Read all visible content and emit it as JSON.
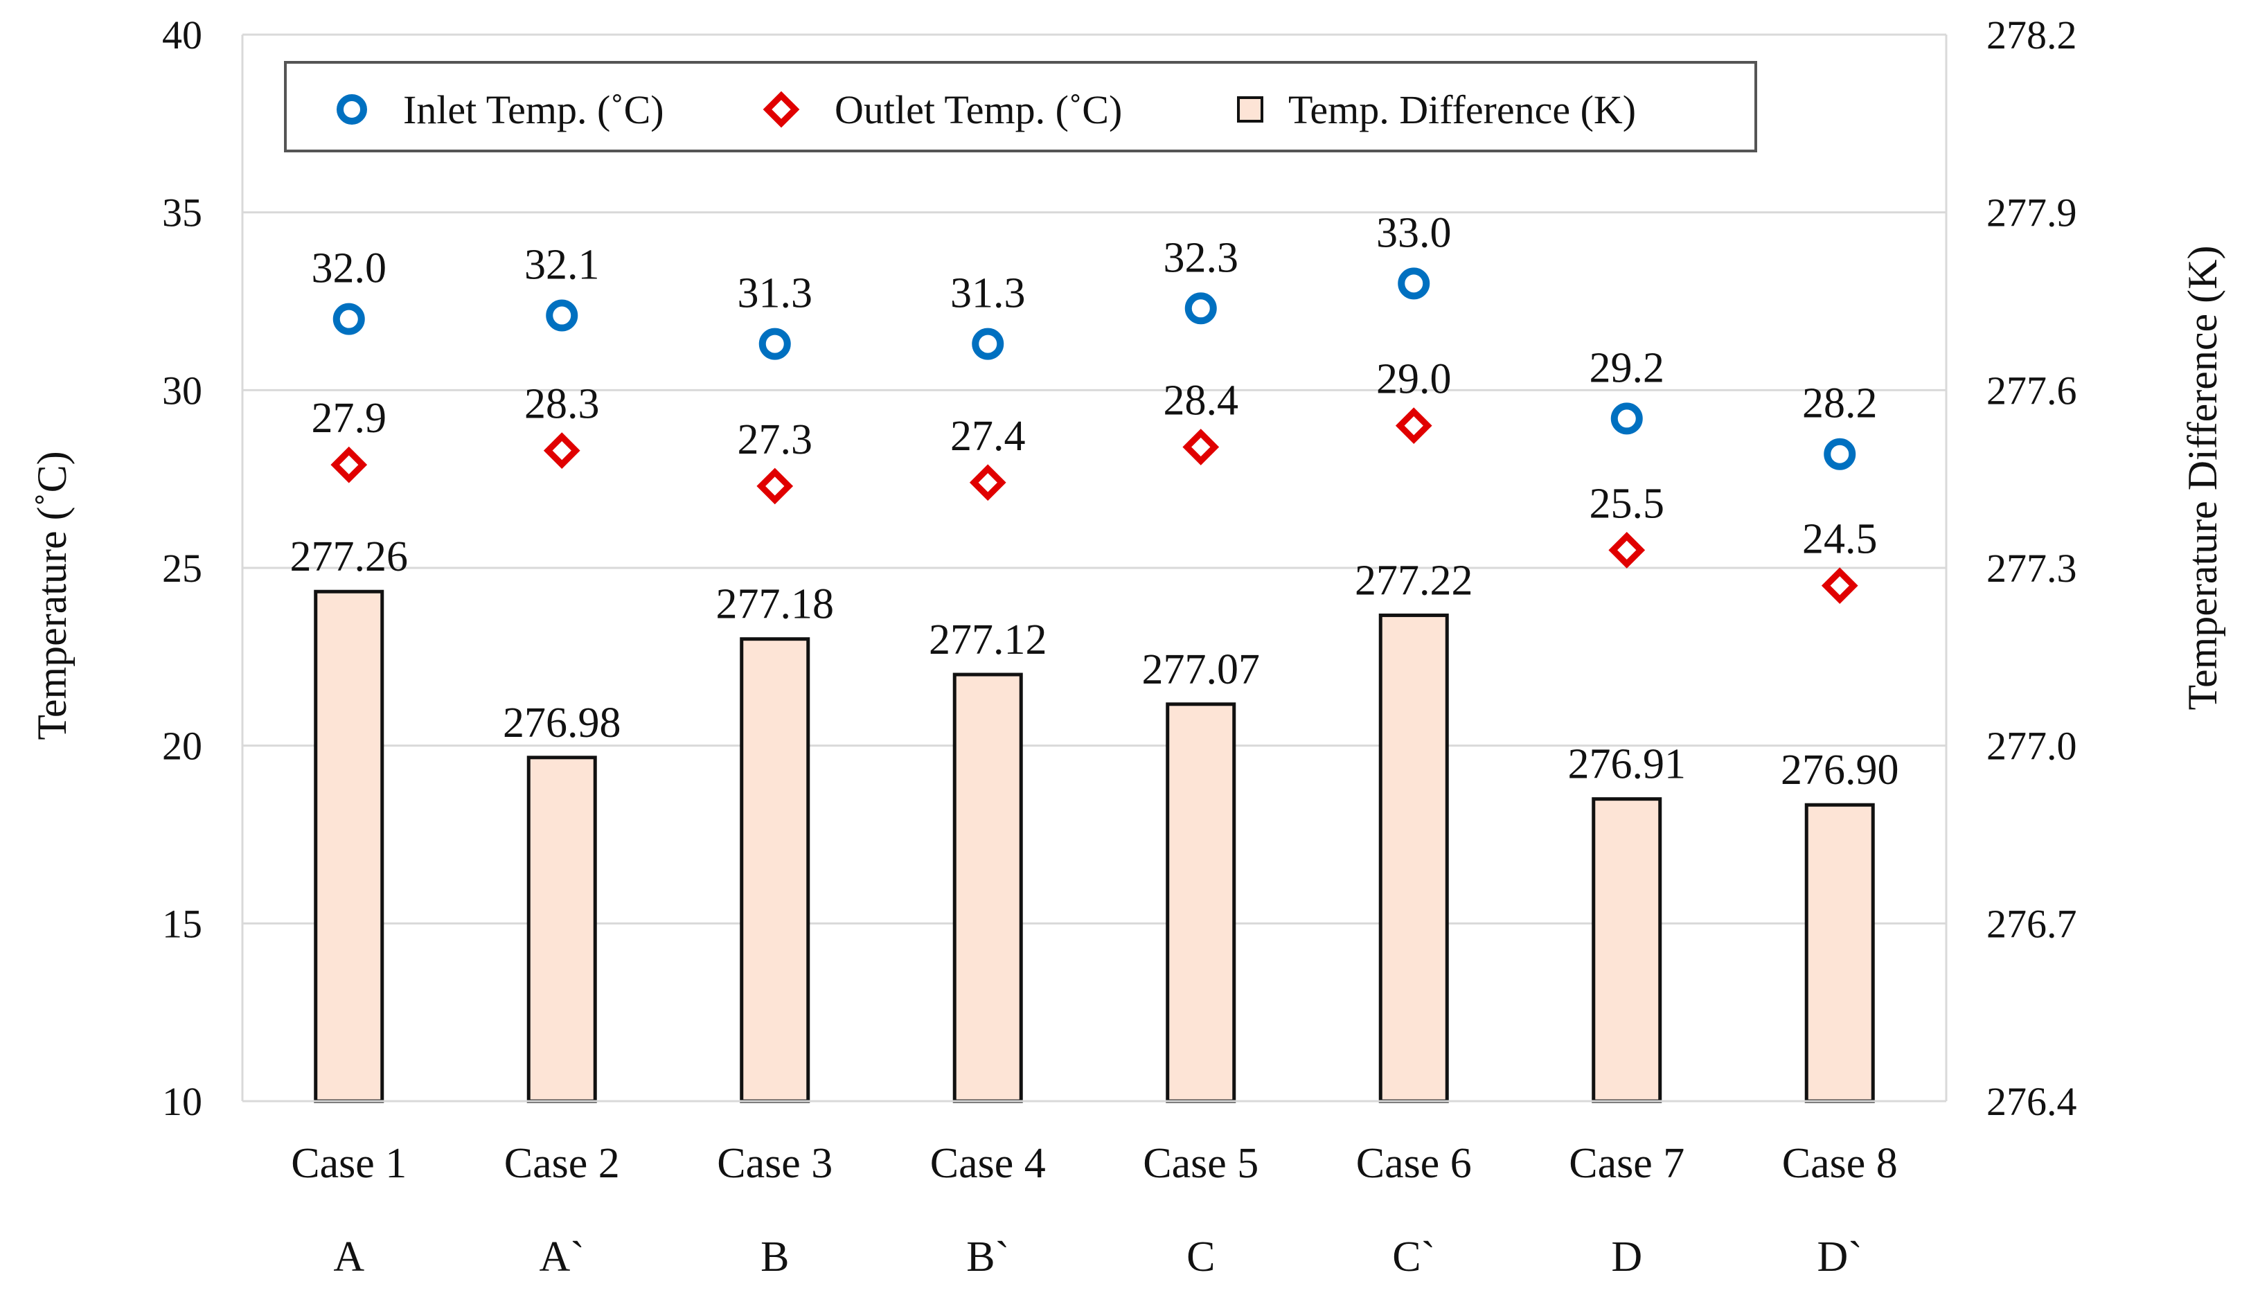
{
  "chart_data": {
    "type": "bar+scatter",
    "categories": [
      "Case 1",
      "Case 2",
      "Case 3",
      "Case 4",
      "Case 5",
      "Case 6",
      "Case 7",
      "Case 8"
    ],
    "groups": [
      "A",
      "A`",
      "B",
      "B`",
      "C",
      "C`",
      "D",
      "D`"
    ],
    "series": [
      {
        "name": "Inlet Temp. (°C)",
        "kind": "scatter",
        "marker": "circle",
        "axis": "left",
        "values": [
          32.0,
          32.1,
          31.3,
          31.3,
          32.3,
          33.0,
          29.2,
          28.2
        ],
        "labels": [
          "32.0",
          "32.1",
          "31.3",
          "31.3",
          "32.3",
          "33.0",
          "29.2",
          "28.2"
        ],
        "color": "#0070c0"
      },
      {
        "name": "Outlet Temp. (°C)",
        "kind": "scatter",
        "marker": "diamond",
        "axis": "left",
        "values": [
          27.9,
          28.3,
          27.3,
          27.4,
          28.4,
          29.0,
          25.5,
          24.5
        ],
        "labels": [
          "27.9",
          "28.3",
          "27.3",
          "27.4",
          "28.4",
          "29.0",
          "25.5",
          "24.5"
        ],
        "color": "#e00000"
      },
      {
        "name": "Temp. Difference (K)",
        "kind": "bar",
        "axis": "right",
        "values": [
          277.26,
          276.98,
          277.18,
          277.12,
          277.07,
          277.22,
          276.91,
          276.9
        ],
        "labels": [
          "277.26",
          "276.98",
          "277.18",
          "277.12",
          "277.07",
          "277.22",
          "276.91",
          "276.90"
        ],
        "color": "#fde4d6"
      }
    ],
    "yaxis_left": {
      "label": "Temperature (˚C)",
      "range": [
        10,
        40
      ],
      "ticks": [
        "10",
        "15",
        "20",
        "25",
        "30",
        "35",
        "40"
      ]
    },
    "yaxis_right": {
      "label": "Temperature Difference (K)",
      "range": [
        276.4,
        278.2
      ],
      "ticks": [
        "276.4",
        "276.7",
        "277.0",
        "277.3",
        "277.6",
        "277.9",
        "278.2"
      ]
    },
    "legend": {
      "position": "top",
      "entries": [
        "Inlet Temp. (˚C)",
        "Outlet Temp. (˚C)",
        "Temp. Difference (K)"
      ]
    },
    "grid": true
  }
}
